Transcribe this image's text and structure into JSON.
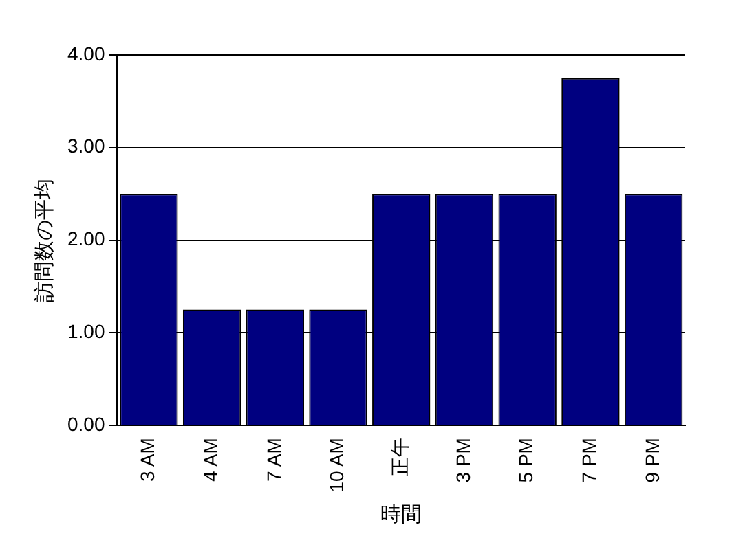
{
  "chart_data": {
    "type": "bar",
    "xlabel": "時間",
    "ylabel": "訪問数の平均",
    "categories": [
      "3 AM",
      "4 AM",
      "7 AM",
      "10 AM",
      "正午",
      "3 PM",
      "5 PM",
      "7 PM",
      "9 PM"
    ],
    "values": [
      2.5,
      1.25,
      1.25,
      1.25,
      2.5,
      2.5,
      2.5,
      3.75,
      2.5
    ],
    "color": "#000080",
    "ylim": [
      0,
      4
    ],
    "yticks": [
      {
        "value": 0,
        "label": "0.00"
      },
      {
        "value": 1,
        "label": "1.00"
      },
      {
        "value": 2,
        "label": "2.00"
      },
      {
        "value": 3,
        "label": "3.00"
      },
      {
        "value": 4,
        "label": "4.00"
      }
    ],
    "grid": "y",
    "legend": false
  }
}
